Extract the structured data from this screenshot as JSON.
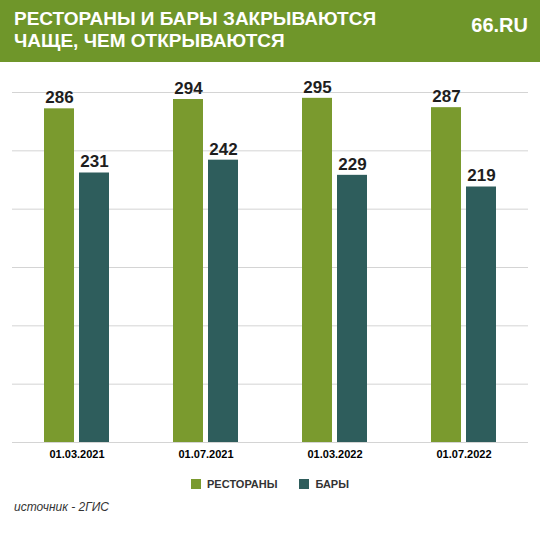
{
  "chart_data": {
    "type": "bar",
    "title": "РЕСТОРАНЫ И БАРЫ ЗАКРЫВАЮТСЯ ЧАЩЕ, ЧЕМ ОТКРЫВАЮТСЯ",
    "logo": "66.RU",
    "caption": "источник - 2ГИС",
    "categories": [
      "01.03.2021",
      "01.07.2021",
      "01.03.2022",
      "01.07.2022"
    ],
    "series": [
      {
        "name": "РЕСТОРАНЫ",
        "color": "#7a9a2e",
        "values": [
          286,
          294,
          295,
          287
        ]
      },
      {
        "name": "БАРЫ",
        "color": "#2e5d5c",
        "values": [
          231,
          242,
          229,
          219
        ]
      }
    ],
    "ylim": [
      0,
      300
    ],
    "yticks": [
      0,
      50,
      100,
      150,
      200,
      250,
      300
    ],
    "grid": true,
    "data_labels": true,
    "tick_labels": "x",
    "legend": "bottom"
  }
}
